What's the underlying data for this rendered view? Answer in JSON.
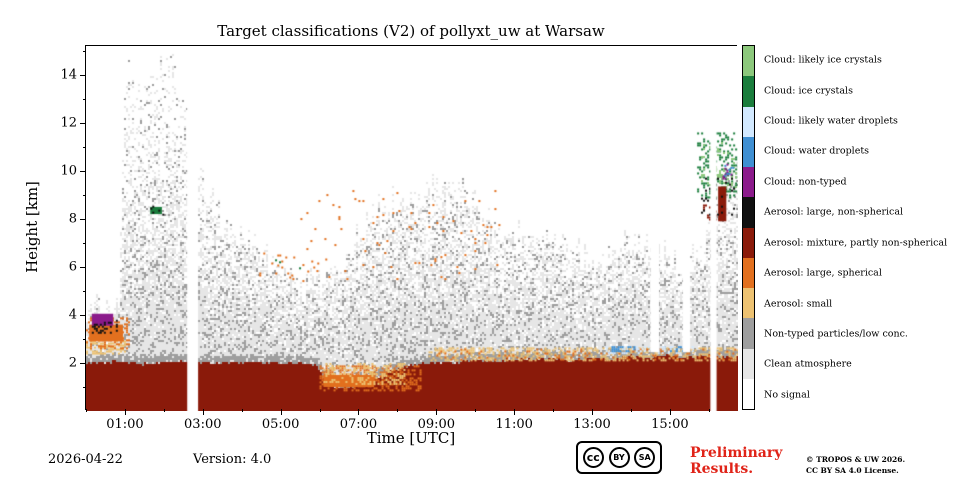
{
  "footer": {
    "date": "2026-04-22",
    "version": "Version: 4.0",
    "preliminary_line1": "Preliminary",
    "preliminary_line2": "Results.",
    "copyright_line1": "© TROPOS & UW 2026.",
    "copyright_line2": "CC BY SA 4.0 License.",
    "license_badge": {
      "cc": "cc",
      "by": "BY",
      "sa": "SA"
    }
  },
  "colors": {
    "preliminary_red": "#e02318",
    "axis": "#000000",
    "background": "#ffffff"
  },
  "chart_data": {
    "type": "heatmap",
    "title": "Target classifications (V2) of pollyxt_uw at Warsaw",
    "xlabel": "Time [UTC]",
    "ylabel": "Height [km]",
    "time_range": [
      0,
      16.75
    ],
    "height_range": [
      0,
      15.2
    ],
    "x_major_ticks": [
      {
        "t": 1,
        "label": "01:00"
      },
      {
        "t": 3,
        "label": "03:00"
      },
      {
        "t": 5,
        "label": "05:00"
      },
      {
        "t": 7,
        "label": "07:00"
      },
      {
        "t": 9,
        "label": "09:00"
      },
      {
        "t": 11,
        "label": "11:00"
      },
      {
        "t": 13,
        "label": "13:00"
      },
      {
        "t": 15,
        "label": "15:00"
      }
    ],
    "x_minor_step": 1,
    "y_major_ticks": [
      2,
      4,
      6,
      8,
      10,
      12,
      14
    ],
    "y_minor_step": 1,
    "legend_position": "right",
    "categories": [
      {
        "id": "cloud_likely_ice",
        "label": "Cloud: likely ice crystals",
        "color": "#8cc87c"
      },
      {
        "id": "cloud_ice",
        "label": "Cloud: ice crystals",
        "color": "#1a7d3c"
      },
      {
        "id": "cloud_likely_water",
        "label": "Cloud: likely water droplets",
        "color": "#d2e9ff"
      },
      {
        "id": "cloud_water",
        "label": "Cloud: water droplets",
        "color": "#3f8fd2"
      },
      {
        "id": "cloud_nontyped",
        "label": "Cloud: non-typed",
        "color": "#8b1a8b"
      },
      {
        "id": "aerosol_large_nonspherical",
        "label": "Aerosol: large, non-spherical",
        "color": "#101010"
      },
      {
        "id": "aerosol_mixture",
        "label": "Aerosol: mixture, partly non-spherical",
        "color": "#8a1a0a"
      },
      {
        "id": "aerosol_large_spherical",
        "label": "Aerosol: large, spherical",
        "color": "#e2701f"
      },
      {
        "id": "aerosol_small",
        "label": "Aerosol: small",
        "color": "#edc272"
      },
      {
        "id": "nontyped_lowconc",
        "label": "Non-typed particles/low conc.",
        "color": "#9e9e9e"
      },
      {
        "id": "clean",
        "label": "Clean atmosphere",
        "color": "#e6e6e6"
      },
      {
        "id": "no_signal",
        "label": "No signal",
        "color": "#ffffff"
      }
    ],
    "seed": 77,
    "gray_band_thickness": 0.3,
    "gray_top_profile": [
      [
        0,
        4.3
      ],
      [
        0.85,
        4.5
      ],
      [
        1.0,
        14.3
      ],
      [
        1.5,
        13.5
      ],
      [
        1.8,
        14.6
      ],
      [
        2.3,
        14.4
      ],
      [
        2.6,
        12.5
      ],
      [
        2.95,
        9.8
      ],
      [
        3.4,
        8.2
      ],
      [
        4.0,
        7.4
      ],
      [
        4.6,
        6.6
      ],
      [
        5.2,
        5.8
      ],
      [
        5.7,
        5.2
      ],
      [
        6.2,
        5.6
      ],
      [
        6.8,
        6.8
      ],
      [
        7.4,
        8.3
      ],
      [
        8.0,
        8.8
      ],
      [
        8.7,
        9.3
      ],
      [
        9.4,
        9.5
      ],
      [
        10.0,
        8.6
      ],
      [
        10.6,
        7.6
      ],
      [
        11.2,
        7.2
      ],
      [
        11.8,
        7.6
      ],
      [
        12.4,
        6.8
      ],
      [
        13.0,
        6.2
      ],
      [
        13.6,
        6.6
      ],
      [
        14.2,
        7.2
      ],
      [
        14.8,
        6.6
      ],
      [
        15.4,
        6.2
      ],
      [
        15.9,
        7.0
      ],
      [
        16.3,
        9.0
      ],
      [
        16.75,
        10.6
      ]
    ],
    "aerosol_top_profile": [
      [
        0,
        2.0
      ],
      [
        0.8,
        2.05
      ],
      [
        1.6,
        1.95
      ],
      [
        2.4,
        2.05
      ],
      [
        3.2,
        2.0
      ],
      [
        4.0,
        2.0
      ],
      [
        4.8,
        2.0
      ],
      [
        5.6,
        2.0
      ],
      [
        5.95,
        1.85
      ],
      [
        6.15,
        1.25
      ],
      [
        6.5,
        0.95
      ],
      [
        6.9,
        1.05
      ],
      [
        7.3,
        1.3
      ],
      [
        7.7,
        1.55
      ],
      [
        8.1,
        1.75
      ],
      [
        8.5,
        1.95
      ],
      [
        9.0,
        2.05
      ],
      [
        9.5,
        2.0
      ],
      [
        10.0,
        2.15
      ],
      [
        10.5,
        2.05
      ],
      [
        11.0,
        2.2
      ],
      [
        11.5,
        2.1
      ],
      [
        12.0,
        2.2
      ],
      [
        12.5,
        2.1
      ],
      [
        13.0,
        2.25
      ],
      [
        13.5,
        2.15
      ],
      [
        14.0,
        2.3
      ],
      [
        14.5,
        2.2
      ],
      [
        15.0,
        2.3
      ],
      [
        15.5,
        2.25
      ],
      [
        16.0,
        2.3
      ],
      [
        16.75,
        2.25
      ]
    ],
    "no_signal_gaps": [
      {
        "t": [
          2.6,
          2.88
        ]
      },
      {
        "t": [
          14.5,
          14.72
        ],
        "down_to": 2.45
      },
      {
        "t": [
          15.33,
          15.52
        ],
        "down_to": 2.45
      },
      {
        "t": [
          16.04,
          16.2
        ]
      }
    ],
    "features": [
      {
        "type": "speckle",
        "cat": "aerosol_small",
        "t": [
          0.0,
          1.0
        ],
        "h": [
          2.4,
          3.1
        ],
        "density": 0.5
      },
      {
        "type": "blob",
        "cat": "aerosol_large_spherical",
        "t": [
          0.08,
          0.95
        ],
        "h": [
          2.9,
          3.6
        ]
      },
      {
        "type": "speckle",
        "cat": "aerosol_large_spherical",
        "t": [
          0.0,
          1.1
        ],
        "h": [
          2.6,
          3.9
        ],
        "density": 0.3
      },
      {
        "type": "blob",
        "cat": "cloud_nontyped",
        "t": [
          0.15,
          0.7
        ],
        "h": [
          3.55,
          4.05
        ]
      },
      {
        "type": "speckle",
        "cat": "aerosol_large_nonspherical",
        "t": [
          0.15,
          0.8
        ],
        "h": [
          3.3,
          3.8
        ],
        "density": 0.35
      },
      {
        "type": "blob",
        "cat": "cloud_ice",
        "t": [
          1.65,
          1.95
        ],
        "h": [
          8.2,
          8.5
        ]
      },
      {
        "type": "speckle",
        "cat": "aerosol_large_nonspherical",
        "t": [
          1.6,
          2.0
        ],
        "h": [
          8.15,
          8.55
        ],
        "density": 0.15
      },
      {
        "type": "speckle",
        "cat": "aerosol_large_spherical",
        "t": [
          5.2,
          10.6
        ],
        "h": [
          5.4,
          9.2
        ],
        "density": 0.02
      },
      {
        "type": "speckle",
        "cat": "aerosol_large_spherical",
        "t": [
          4.4,
          6.2
        ],
        "h": [
          5.6,
          6.6
        ],
        "density": 0.05
      },
      {
        "type": "speckle",
        "cat": "cloud_ice",
        "t": [
          4.6,
          5.6
        ],
        "h": [
          5.8,
          6.4
        ],
        "density": 0.02
      },
      {
        "type": "blob",
        "cat": "aerosol_large_spherical",
        "t": [
          6.1,
          7.4
        ],
        "h": [
          1.0,
          1.5
        ]
      },
      {
        "type": "speckle",
        "cat": "aerosol_large_spherical",
        "t": [
          6.0,
          8.6
        ],
        "h": [
          0.85,
          1.9
        ],
        "density": 0.45
      },
      {
        "type": "speckle",
        "cat": "aerosol_small",
        "t": [
          6.1,
          8.2
        ],
        "h": [
          1.1,
          2.0
        ],
        "density": 0.3
      },
      {
        "type": "speckle",
        "cat": "aerosol_small",
        "t": [
          8.8,
          16.75
        ],
        "h": [
          2.1,
          2.65
        ],
        "density": 0.4
      },
      {
        "type": "speckle",
        "cat": "aerosol_large_spherical",
        "t": [
          9.0,
          16.7
        ],
        "h": [
          2.15,
          2.6
        ],
        "density": 0.12
      },
      {
        "type": "speckle",
        "cat": "cloud_likely_water",
        "t": [
          13.3,
          15.6
        ],
        "h": [
          2.45,
          2.7
        ],
        "density": 0.4
      },
      {
        "type": "speckle",
        "cat": "cloud_water",
        "t": [
          13.5,
          14.1
        ],
        "h": [
          2.5,
          2.7
        ],
        "density": 0.5
      },
      {
        "type": "speckle",
        "cat": "cloud_water",
        "t": [
          15.0,
          15.45
        ],
        "h": [
          2.5,
          2.7
        ],
        "density": 0.35
      },
      {
        "type": "speckle",
        "cat": "cloud_ice",
        "t": [
          15.7,
          16.7
        ],
        "h": [
          8.9,
          11.6
        ],
        "density": 0.22
      },
      {
        "type": "speckle",
        "cat": "cloud_likely_ice",
        "t": [
          15.8,
          16.7
        ],
        "h": [
          9.3,
          11.2
        ],
        "density": 0.12
      },
      {
        "type": "speckle",
        "cat": "aerosol_mixture",
        "t": [
          15.85,
          16.2
        ],
        "h": [
          8.0,
          8.6
        ],
        "density": 0.2
      },
      {
        "type": "blob",
        "cat": "aerosol_mixture",
        "t": [
          16.24,
          16.45
        ],
        "h": [
          7.9,
          9.35
        ]
      },
      {
        "type": "speckle",
        "cat": "aerosol_large_nonspherical",
        "t": [
          15.8,
          16.65
        ],
        "h": [
          8.2,
          9.8
        ],
        "density": 0.08
      },
      {
        "type": "speckle",
        "cat": "cloud_nontyped",
        "t": [
          16.35,
          16.6
        ],
        "h": [
          9.7,
          10.3
        ],
        "density": 0.35
      },
      {
        "type": "speckle",
        "cat": "cloud_water",
        "t": [
          16.4,
          16.65
        ],
        "h": [
          9.8,
          10.25
        ],
        "density": 0.3
      }
    ]
  }
}
